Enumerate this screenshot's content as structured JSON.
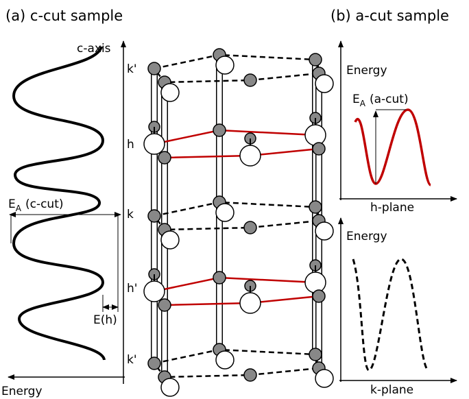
{
  "panel_a": {
    "title": "(a) c-cut sample",
    "axis_label": "c-axis",
    "layers": [
      "k'",
      "h",
      "k",
      "h'",
      "k'"
    ],
    "barrier": {
      "symbol": "E",
      "subscript": "A",
      "suffix": "(c-cut)"
    },
    "step_label": "E(h)",
    "x_axis_label": "Energy"
  },
  "panel_b": {
    "title": "(b) a-cut sample",
    "plots": [
      {
        "y_axis_label": "Energy",
        "barrier": {
          "symbol": "E",
          "subscript": "A",
          "suffix": "(a-cut)"
        },
        "x_axis_label": "h-plane"
      },
      {
        "y_axis_label": "Energy",
        "x_axis_label": "k-plane"
      }
    ]
  }
}
